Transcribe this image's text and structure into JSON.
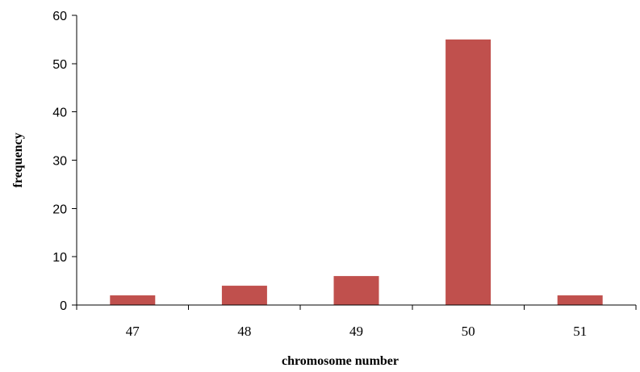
{
  "chart_data": {
    "type": "bar",
    "title": "",
    "xlabel": "chromosome number",
    "ylabel": "frequency",
    "categories": [
      "47",
      "48",
      "49",
      "50",
      "51"
    ],
    "values": [
      2,
      4,
      6,
      55,
      2
    ],
    "ylim": [
      0,
      60
    ],
    "yticks": [
      0,
      10,
      20,
      30,
      40,
      50,
      60
    ],
    "grid": false,
    "legend": "none",
    "bar_color": "#c0504d"
  }
}
